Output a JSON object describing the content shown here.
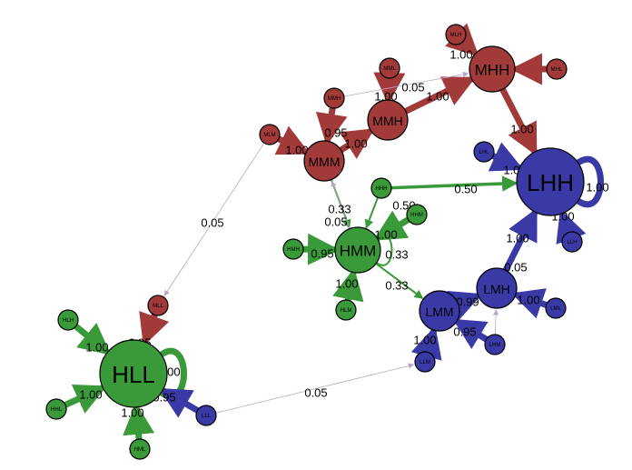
{
  "colors": {
    "red": "#a33a3a",
    "green": "#3a9a3a",
    "blue": "#3a3aa6",
    "thin": "#b8a8c8"
  },
  "nodes": [
    {
      "id": "HLL",
      "label": "HLL",
      "color": "green",
      "size": "xl"
    },
    {
      "id": "LHH",
      "label": "LHH",
      "color": "blue",
      "size": "xl"
    },
    {
      "id": "MHH",
      "label": "MHH",
      "color": "red",
      "size": "l"
    },
    {
      "id": "MMH",
      "label": "MMH",
      "color": "red",
      "size": "m"
    },
    {
      "id": "MMM",
      "label": "MMM",
      "color": "red",
      "size": "m"
    },
    {
      "id": "HMM",
      "label": "HMM",
      "color": "green",
      "size": "l"
    },
    {
      "id": "LMM",
      "label": "LMM",
      "color": "blue",
      "size": "m"
    },
    {
      "id": "LMH",
      "label": "LMH",
      "color": "blue",
      "size": "m"
    },
    {
      "id": "MLH",
      "label": "MLH",
      "color": "red",
      "size": "s"
    },
    {
      "id": "MML",
      "label": "MML",
      "color": "red",
      "size": "s"
    },
    {
      "id": "MHL",
      "label": "MHL",
      "color": "red",
      "size": "s"
    },
    {
      "id": "MMHs",
      "label": "MMH",
      "color": "red",
      "size": "s"
    },
    {
      "id": "MLM",
      "label": "MLM",
      "color": "red",
      "size": "s"
    },
    {
      "id": "MLL",
      "label": "MLL",
      "color": "red",
      "size": "s"
    },
    {
      "id": "LHL",
      "label": "LHL",
      "color": "blue",
      "size": "s"
    },
    {
      "id": "LLH",
      "label": "LLH",
      "color": "blue",
      "size": "s"
    },
    {
      "id": "LML",
      "label": "LML",
      "color": "blue",
      "size": "s"
    },
    {
      "id": "LHM",
      "label": "LHM",
      "color": "blue",
      "size": "s"
    },
    {
      "id": "LLM",
      "label": "LLM",
      "color": "blue",
      "size": "s"
    },
    {
      "id": "LLL",
      "label": "LLL",
      "color": "blue",
      "size": "s"
    },
    {
      "id": "HHH",
      "label": "HHH",
      "color": "green",
      "size": "s"
    },
    {
      "id": "HHM",
      "label": "HHM",
      "color": "green",
      "size": "s"
    },
    {
      "id": "HMH",
      "label": "HMH",
      "color": "green",
      "size": "s"
    },
    {
      "id": "HLM",
      "label": "HLM",
      "color": "green",
      "size": "s"
    },
    {
      "id": "HLH",
      "label": "HLH",
      "color": "green",
      "size": "s"
    },
    {
      "id": "HHL",
      "label": "HHL",
      "color": "green",
      "size": "s"
    },
    {
      "id": "HML",
      "label": "HML",
      "color": "green",
      "size": "s"
    }
  ],
  "edges": [
    {
      "from": "MLH",
      "to": "MHH",
      "weight": "1.00",
      "color": "red",
      "w": "thick"
    },
    {
      "from": "MHL",
      "to": "MHH",
      "weight": "",
      "color": "red",
      "w": "thick"
    },
    {
      "from": "MML",
      "to": "MMH",
      "weight": "1.00",
      "color": "red",
      "w": "thick"
    },
    {
      "from": "MMH",
      "to": "MHH",
      "weight": "1.00",
      "color": "red",
      "w": "thick"
    },
    {
      "from": "MMHs",
      "to": "MHH",
      "weight": "0.05",
      "color": "thin",
      "w": "thin"
    },
    {
      "from": "MMHs",
      "to": "MMM",
      "weight": "0.95",
      "color": "red",
      "w": "thick"
    },
    {
      "from": "MMM",
      "to": "MMH",
      "weight": "1.00",
      "color": "red",
      "w": "thick"
    },
    {
      "from": "MLM",
      "to": "MMM",
      "weight": "1.00",
      "color": "red",
      "w": "thick"
    },
    {
      "from": "MHH",
      "to": "LHH",
      "weight": "1.00",
      "color": "red",
      "w": "thick"
    },
    {
      "from": "LHL",
      "to": "LHH",
      "weight": "1.00",
      "color": "blue",
      "w": "thick"
    },
    {
      "from": "LHH",
      "to": "LHH",
      "weight": "1.00",
      "color": "blue",
      "w": "thick",
      "loop": true
    },
    {
      "from": "LLH",
      "to": "LHH",
      "weight": "1.00",
      "color": "blue",
      "w": "thick"
    },
    {
      "from": "HHH",
      "to": "LHH",
      "weight": "0.50",
      "color": "green",
      "w": "medium"
    },
    {
      "from": "HHH",
      "to": "HMM",
      "weight": "0.50",
      "color": "green",
      "w": "thin2"
    },
    {
      "from": "MMM",
      "to": "HMM",
      "weight": "0.33",
      "color": "green",
      "w": "thin2"
    },
    {
      "from": "HMM",
      "to": "MMM",
      "weight": "0.05",
      "color": "thin",
      "w": "thin"
    },
    {
      "from": "HHM",
      "to": "HMM",
      "weight": "1.00",
      "color": "green",
      "w": "thick"
    },
    {
      "from": "HMM",
      "to": "HMM",
      "weight": "0.33",
      "color": "green",
      "w": "thin2",
      "loop": true
    },
    {
      "from": "HMH",
      "to": "HMM",
      "weight": "0.95",
      "color": "green",
      "w": "thick"
    },
    {
      "from": "HLM",
      "to": "HMM",
      "weight": "1.00",
      "color": "green",
      "w": "thick"
    },
    {
      "from": "HMM",
      "to": "LMM",
      "weight": "0.33",
      "color": "green",
      "w": "thin2"
    },
    {
      "from": "LMH",
      "to": "LHH",
      "weight": "1.00",
      "color": "blue",
      "w": "thick"
    },
    {
      "from": "LMM",
      "to": "LMH",
      "weight": "0.99",
      "color": "blue",
      "w": "thick"
    },
    {
      "from": "LML",
      "to": "LMH",
      "weight": "1.00",
      "color": "blue",
      "w": "thick"
    },
    {
      "from": "LHM",
      "to": "LMH",
      "weight": "0.05",
      "color": "thin",
      "w": "thin"
    },
    {
      "from": "LHM",
      "to": "LMM",
      "weight": "0.95",
      "color": "blue",
      "w": "thick"
    },
    {
      "from": "LLM",
      "to": "LMM",
      "weight": "1.00",
      "color": "blue",
      "w": "thick"
    },
    {
      "from": "MLM",
      "to": "MLL",
      "weight": "0.05",
      "color": "thin",
      "w": "thin"
    },
    {
      "from": "MLL",
      "to": "HLL",
      "weight": "0.95",
      "color": "red",
      "w": "thick"
    },
    {
      "from": "HLH",
      "to": "HLL",
      "weight": "1.00",
      "color": "green",
      "w": "thick"
    },
    {
      "from": "HLL",
      "to": "HLL",
      "weight": "1.00",
      "color": "green",
      "w": "thick",
      "loop": true
    },
    {
      "from": "HHL",
      "to": "HLL",
      "weight": "1.00",
      "color": "green",
      "w": "thick"
    },
    {
      "from": "HML",
      "to": "HLL",
      "weight": "1.00",
      "color": "green",
      "w": "thick"
    },
    {
      "from": "LLL",
      "to": "HLL",
      "weight": "0.95",
      "color": "blue",
      "w": "thick"
    },
    {
      "from": "LLL",
      "to": "LLM",
      "weight": "0.05",
      "color": "thin",
      "w": "thin"
    }
  ]
}
